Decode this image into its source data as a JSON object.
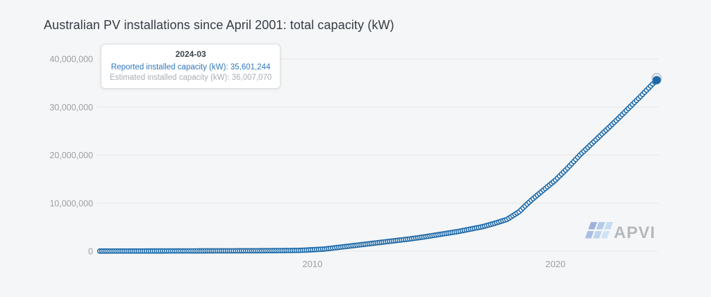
{
  "title": "Australian PV installations since April 2001: total capacity (kW)",
  "tooltip": {
    "date": "2024-03",
    "reported_line": "Reported installed capacity (kW): 35,601,244",
    "estimated_line": "Estimated installed capacity (kW): 36,007,070"
  },
  "logo": {
    "text": "APVI",
    "text_color": "#b5b9bd",
    "cells": [
      "#9fb1dc",
      "#b2cbe9",
      "#c5dcf2",
      "#abbde3",
      "#bdd4ee",
      "#cfe3f5"
    ]
  },
  "colors": {
    "background": "#f5f6f7",
    "series": "#1e6aa8",
    "marker_fill": "#ffffff",
    "estimated_halo": "#c3cbd5",
    "grid": "#e6e6e6",
    "tick_text": "#9aa0a4",
    "title_text": "#343c44"
  },
  "chart_data": {
    "type": "line",
    "title": "Australian PV installations since April 2001: total capacity (kW)",
    "frequency": "monthly",
    "grid": true,
    "legend": false,
    "x_axis": {
      "range_decimal_years": [
        2001.25,
        2024.1667
      ],
      "ticks": [
        {
          "year": 2010,
          "label": "2010"
        },
        {
          "year": 2020,
          "label": "2020"
        }
      ]
    },
    "y_axis": {
      "range": [
        0,
        40000000
      ],
      "ticks": [
        {
          "value": 0,
          "label": "0"
        },
        {
          "value": 10000000,
          "label": "10,000,000"
        },
        {
          "value": 20000000,
          "label": "20,000,000"
        },
        {
          "value": 30000000,
          "label": "30,000,000"
        },
        {
          "value": 40000000,
          "label": "40,000,000"
        }
      ]
    },
    "series": [
      {
        "name": "Reported installed capacity (kW)",
        "highlighted_point": {
          "date": "2024-03",
          "value": 35601244
        },
        "anchors_decimal_year_kw": [
          [
            2001.25,
            25000
          ],
          [
            2002,
            33000
          ],
          [
            2003,
            40000
          ],
          [
            2004,
            48000
          ],
          [
            2005,
            57000
          ],
          [
            2006,
            68000
          ],
          [
            2007,
            80000
          ],
          [
            2008,
            100000
          ],
          [
            2009,
            140000
          ],
          [
            2009.5,
            180000
          ],
          [
            2010,
            300000
          ],
          [
            2010.5,
            450000
          ],
          [
            2011,
            750000
          ],
          [
            2011.5,
            1050000
          ],
          [
            2012,
            1350000
          ],
          [
            2012.5,
            1650000
          ],
          [
            2013,
            1950000
          ],
          [
            2013.5,
            2250000
          ],
          [
            2014,
            2550000
          ],
          [
            2014.5,
            2900000
          ],
          [
            2015,
            3300000
          ],
          [
            2015.5,
            3700000
          ],
          [
            2016,
            4100000
          ],
          [
            2016.5,
            4600000
          ],
          [
            2017,
            5100000
          ],
          [
            2017.5,
            5800000
          ],
          [
            2018,
            6600000
          ],
          [
            2018.5,
            8200000
          ],
          [
            2019,
            10600000
          ],
          [
            2019.5,
            12700000
          ],
          [
            2020,
            14800000
          ],
          [
            2020.5,
            17300000
          ],
          [
            2021,
            20000000
          ],
          [
            2021.5,
            22400000
          ],
          [
            2022,
            24800000
          ],
          [
            2022.5,
            27200000
          ],
          [
            2023,
            29700000
          ],
          [
            2023.5,
            32200000
          ],
          [
            2024,
            34800000
          ],
          [
            2024.1667,
            35601244
          ]
        ]
      },
      {
        "name": "Estimated installed capacity (kW)",
        "highlighted_point": {
          "date": "2024-03",
          "value": 36007070
        }
      }
    ]
  }
}
